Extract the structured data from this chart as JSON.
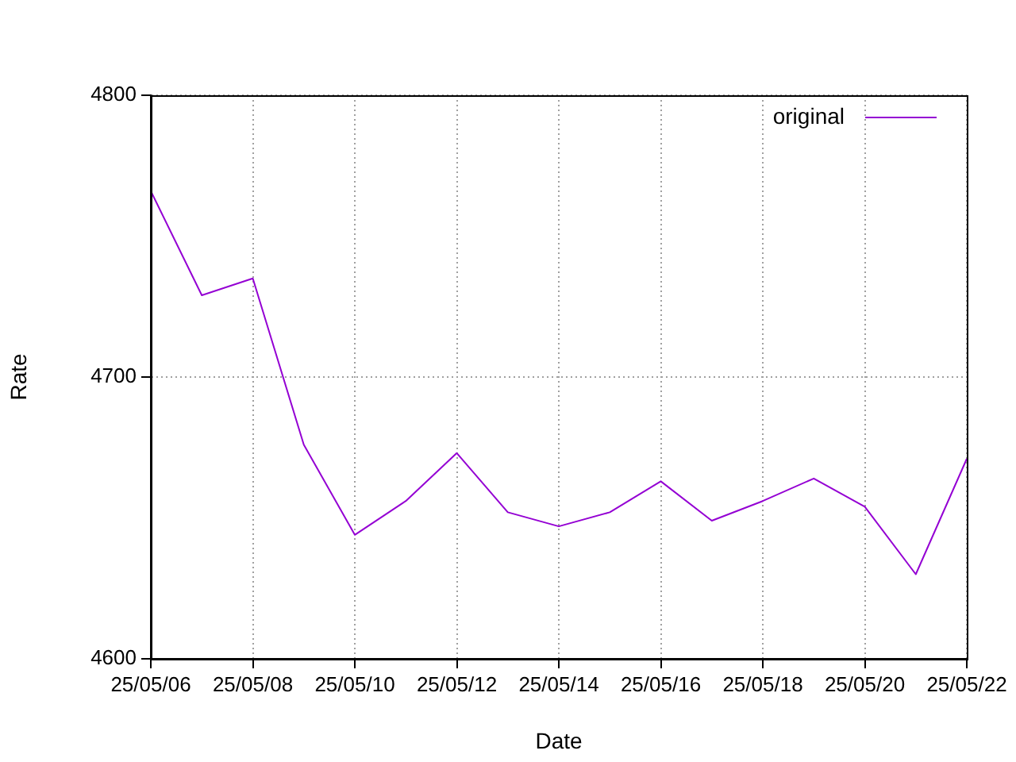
{
  "chart_data": {
    "type": "line",
    "xlabel": "Date",
    "ylabel": "Rate",
    "x": [
      "--05-06",
      "--05-07",
      "--05-08",
      "--05-09",
      "--05-10",
      "--05-11",
      "--05-12",
      "--05-13",
      "--05-14",
      "--05-15",
      "--05-16",
      "--05-17",
      "--05-18",
      "--05-19",
      "--05-20",
      "--05-21",
      "--05-22"
    ],
    "series": [
      {
        "name": "original",
        "color": "#9400d3",
        "values": [
          4766,
          4729,
          4735,
          4676,
          4644,
          4656,
          4673,
          4652,
          4647,
          4652,
          4663,
          4649,
          4656,
          4664,
          4654,
          4630,
          4671
        ]
      }
    ],
    "xlim": [
      "--05-06",
      "--05-22"
    ],
    "xticks": [
      {
        "value": "--05-06",
        "label": "25/05/06"
      },
      {
        "value": "--05-08",
        "label": "25/05/08"
      },
      {
        "value": "--05-10",
        "label": "25/05/10"
      },
      {
        "value": "--05-12",
        "label": "25/05/12"
      },
      {
        "value": "--05-14",
        "label": "25/05/14"
      },
      {
        "value": "--05-16",
        "label": "25/05/16"
      },
      {
        "value": "--05-18",
        "label": "25/05/18"
      },
      {
        "value": "--05-20",
        "label": "25/05/20"
      },
      {
        "value": "--05-22",
        "label": "25/05/22"
      }
    ],
    "ylim": [
      4600,
      4800
    ],
    "yticks": [
      4600,
      4700,
      4800
    ],
    "grid": true,
    "legend": "top right",
    "marker": "none",
    "line_style": "solid"
  }
}
